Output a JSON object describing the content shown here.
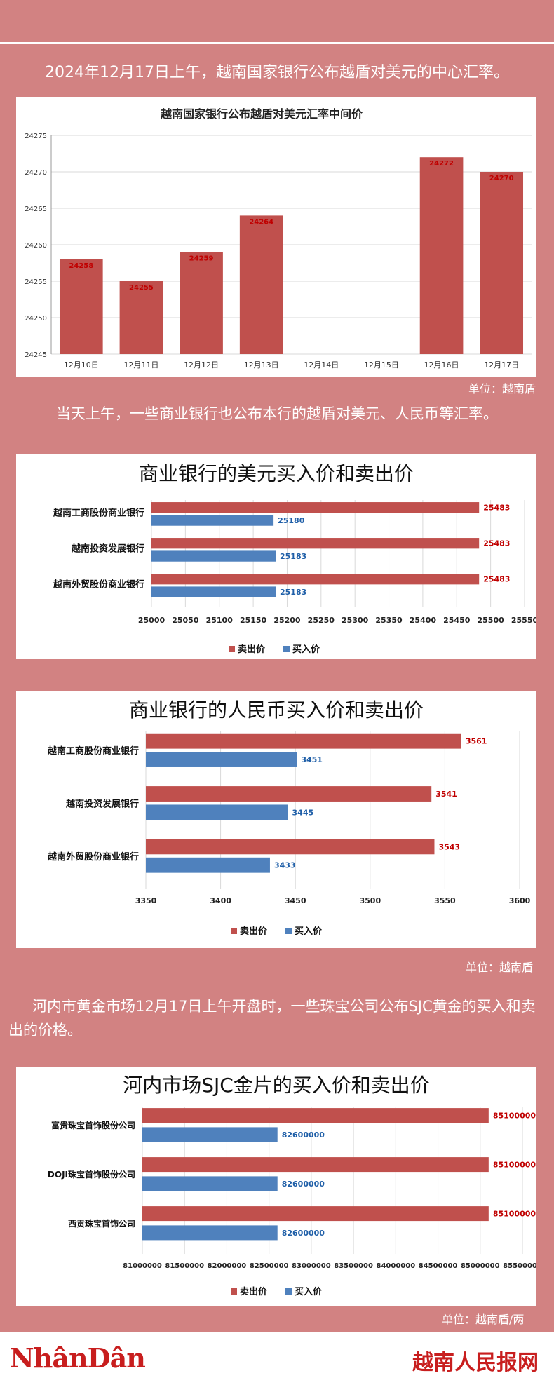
{
  "intro": "2024年12月17日上午，越南国家银行公布越盾对美元的中心汇率。",
  "text2": "当天上午，一些商业银行也公布本行的越盾对美元、人民币等汇率。",
  "text3": "河内市黄金市场12月17日上午开盘时，一些珠宝公司公布SJC黄金的买入和卖出的价格。",
  "unit1": "单位：越南盾",
  "unit2": "单位：越南盾",
  "unit3": "单位：越南盾/两",
  "footer": {
    "left_logo": "NhânDân",
    "right_logo": "越南人民报网"
  },
  "colors": {
    "sell": "#c0504d",
    "buy": "#4f81bd",
    "background": "#d28282"
  },
  "chart_data": [
    {
      "type": "bar",
      "title": "越南国家银行公布越盾对美元汇率中间价",
      "categories": [
        "12月10日",
        "12月11日",
        "12月12日",
        "12月13日",
        "12月14日",
        "12月15日",
        "12月16日",
        "12月17日"
      ],
      "values": [
        24258,
        24255,
        24259,
        24264,
        null,
        null,
        24272,
        24270
      ],
      "value_labels": [
        "24258",
        "24255",
        "24259",
        "24264",
        "",
        "",
        "24272",
        "24270"
      ],
      "yticks": [
        "24245",
        "24250",
        "24255",
        "24260",
        "24265",
        "24270",
        "24275"
      ],
      "ylim": [
        24245,
        24275
      ],
      "grid": true
    },
    {
      "type": "bar",
      "orientation": "horizontal",
      "title": "商业银行的美元买入价和卖出价",
      "categories": [
        "越南工商股份商业银行",
        "越南投资发展银行",
        "越南外贸股份商业银行"
      ],
      "series": [
        {
          "name": "卖出价",
          "values": [
            25483,
            25483,
            25483
          ],
          "labels": [
            "25483",
            "25483",
            "25483"
          ]
        },
        {
          "name": "买入价",
          "values": [
            25180,
            25183,
            25183
          ],
          "labels": [
            "25180",
            "25183",
            "25183"
          ]
        }
      ],
      "xticks": [
        "25000",
        "25050",
        "25100",
        "25150",
        "25200",
        "25250",
        "25300",
        "25350",
        "25400",
        "25450",
        "25500",
        "25550"
      ],
      "xlim": [
        25000,
        25550
      ],
      "legend": "bottom"
    },
    {
      "type": "bar",
      "orientation": "horizontal",
      "title": "商业银行的人民币买入价和卖出价",
      "categories": [
        "越南工商股份商业银行",
        "越南投资发展银行",
        "越南外贸股份商业银行"
      ],
      "series": [
        {
          "name": "卖出价",
          "values": [
            3561,
            3541,
            3543
          ],
          "labels": [
            "3561",
            "3541",
            "3543"
          ]
        },
        {
          "name": "买入价",
          "values": [
            3451,
            3445,
            3433
          ],
          "labels": [
            "3451",
            "3445",
            "3433"
          ]
        }
      ],
      "xticks": [
        "3350",
        "3400",
        "3450",
        "3500",
        "3550",
        "3600"
      ],
      "xlim": [
        3350,
        3600
      ],
      "legend": "bottom"
    },
    {
      "type": "bar",
      "orientation": "horizontal",
      "title": "河内市场SJC金片的买入价和卖出价",
      "categories": [
        "富贵珠宝首饰股份公司",
        "DOJI珠宝首饰股份公司",
        "西贡珠宝首饰公司"
      ],
      "series": [
        {
          "name": "卖出价",
          "values": [
            85100000,
            85100000,
            85100000
          ],
          "labels": [
            "85100000",
            "85100000",
            "85100000"
          ]
        },
        {
          "name": "买入价",
          "values": [
            82600000,
            82600000,
            82600000
          ],
          "labels": [
            "82600000",
            "82600000",
            "82600000"
          ]
        }
      ],
      "xticks": [
        "81000000",
        "81500000",
        "82000000",
        "82500000",
        "83000000",
        "83500000",
        "84000000",
        "84500000",
        "85000000",
        "85500000"
      ],
      "xlim": [
        81000000,
        85500000
      ],
      "legend": "bottom"
    }
  ]
}
